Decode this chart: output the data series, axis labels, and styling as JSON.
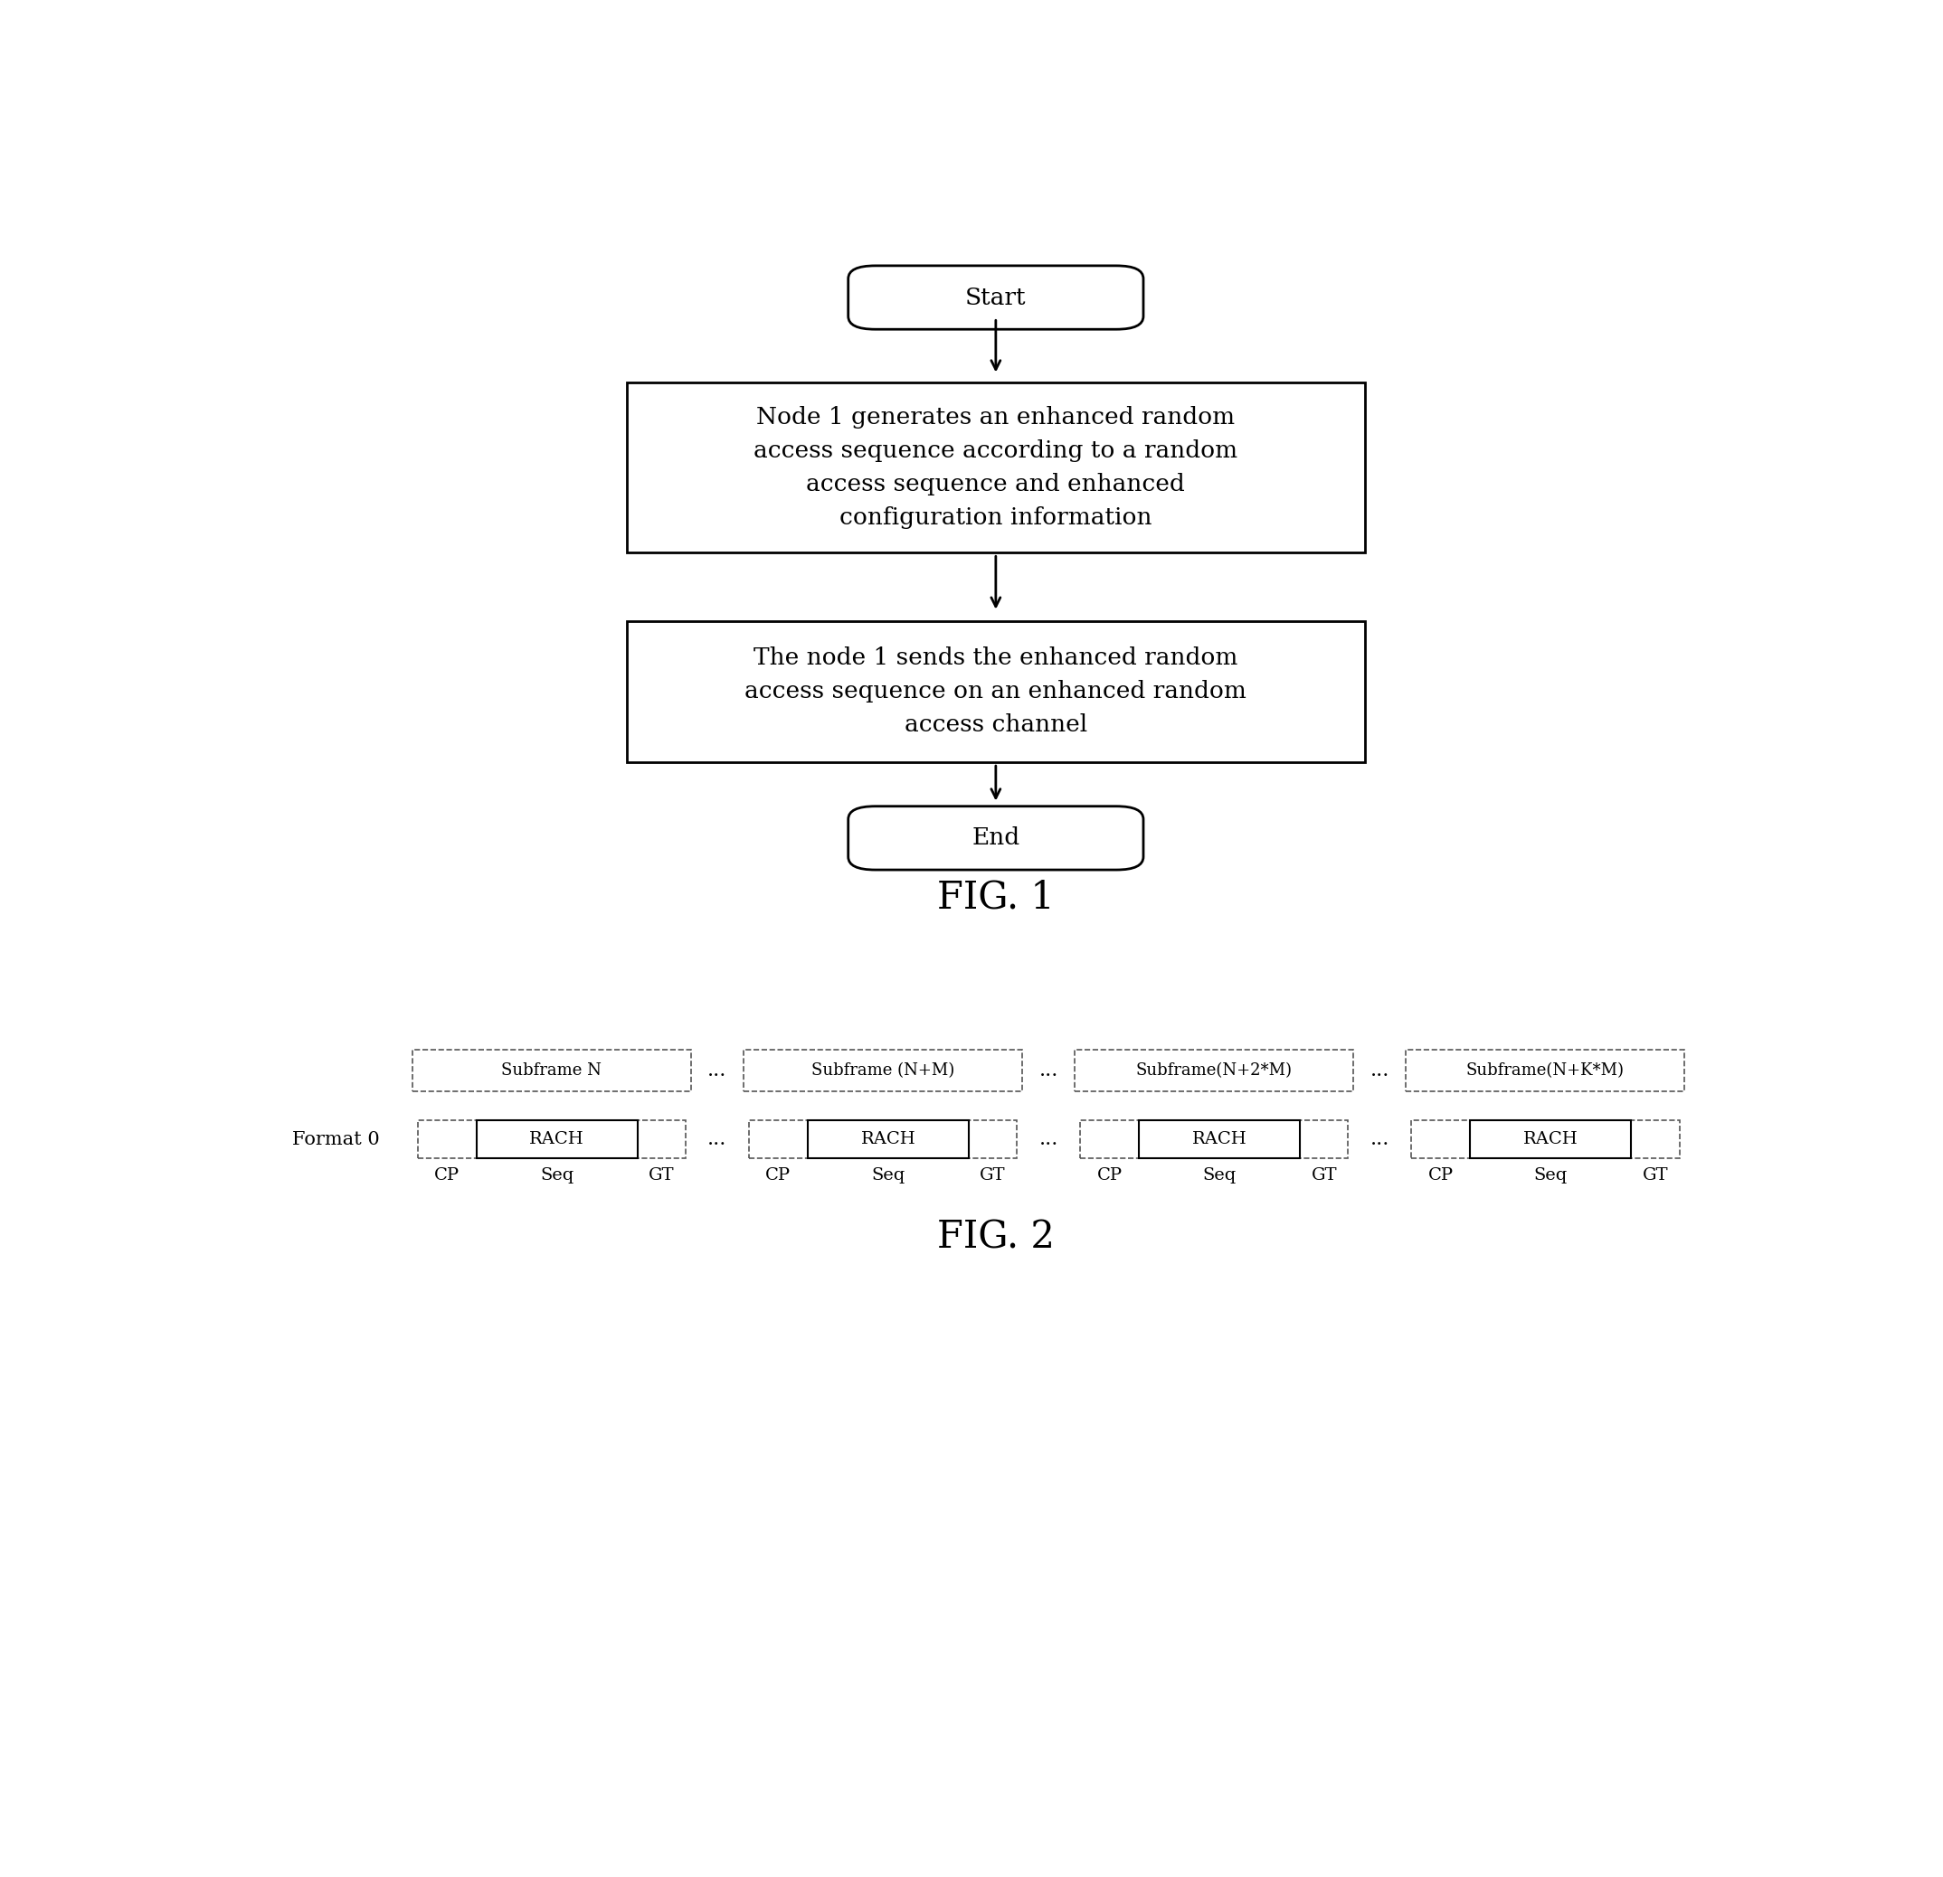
{
  "fig_width": 21.48,
  "fig_height": 20.76,
  "bg_color": "#ffffff",
  "fig1": {
    "title": "FIG. 1",
    "title_fontsize": 30,
    "start_label": "Start",
    "end_label": "End",
    "box1_text": "Node 1 generates an enhanced random\naccess sequence according to a random\naccess sequence and enhanced\nconfiguration information",
    "box2_text": "The node 1 sends the enhanced random\naccess sequence on an enhanced random\naccess channel",
    "text_fontsize": 19
  },
  "fig2": {
    "title": "FIG. 2",
    "title_fontsize": 30,
    "subframe_labels": [
      "Subframe N",
      "Subframe (N+M)",
      "Subframe(N+2*M)",
      "Subframe(N+K*M)"
    ],
    "rach_label": "RACH",
    "format_label": "Format 0",
    "cp_label": "CP",
    "seq_label": "Seq",
    "gt_label": "GT",
    "dots": "...",
    "text_fontsize": 16
  }
}
